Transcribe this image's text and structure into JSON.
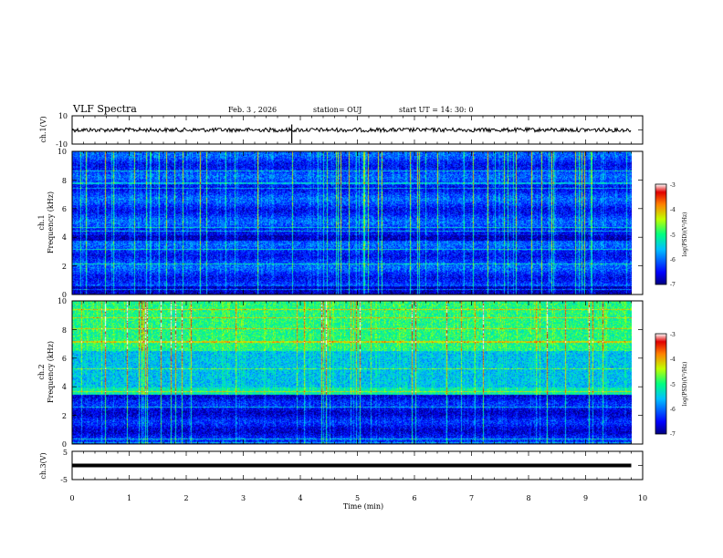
{
  "header": {
    "title": "VLF Spectra",
    "date": "Feb. 3 , 2026",
    "station": "station= OUJ",
    "start": "start UT = 14: 30: 0"
  },
  "chart_data": [
    {
      "type": "line",
      "name": "ch1-voltage",
      "ylabel": "ch.1(V)",
      "ylim": [
        -10,
        10
      ],
      "ytick_labels": [
        "10",
        "-10"
      ],
      "baseline": 0,
      "spike_times_min": [
        3.85
      ]
    },
    {
      "type": "heatmap",
      "name": "ch1-spectrogram",
      "ylabel_channel": "ch.1",
      "ylabel": "Frequency (kHz)",
      "ylim": [
        0,
        10
      ],
      "ytick_labels": [
        "0",
        "2",
        "4",
        "6",
        "8",
        "10"
      ],
      "colorbar_label": "log(PSD)(V²/Hz)",
      "colorbar_range": [
        -7,
        -3
      ],
      "colorbar_tick_labels": [
        "-3",
        "-4",
        "-5",
        "-6",
        "-7"
      ]
    },
    {
      "type": "heatmap",
      "name": "ch2-spectrogram",
      "ylabel_channel": "ch.2",
      "ylabel": "Frequency (kHz)",
      "ylim": [
        0,
        10
      ],
      "ytick_labels": [
        "0",
        "2",
        "4",
        "6",
        "8",
        "10"
      ],
      "colorbar_label": "log(PSD)(V²/Hz)",
      "colorbar_range": [
        -7,
        -3
      ],
      "colorbar_tick_labels": [
        "-3",
        "-4",
        "-5",
        "-6",
        "-7"
      ]
    },
    {
      "type": "line",
      "name": "ch3-voltage",
      "ylabel": "ch.3(V)",
      "ylim": [
        -5,
        5
      ],
      "ytick_labels": [
        "5",
        "-5"
      ],
      "baseline": 0
    }
  ],
  "xaxis": {
    "label": "Time (min)",
    "xlim": [
      0,
      10
    ],
    "data_end_min": 9.8,
    "tick_labels": [
      "0",
      "1",
      "2",
      "3",
      "4",
      "5",
      "6",
      "7",
      "8",
      "9",
      "10"
    ]
  },
  "colors": {
    "trace": "#000000",
    "background": "#ffffff"
  }
}
